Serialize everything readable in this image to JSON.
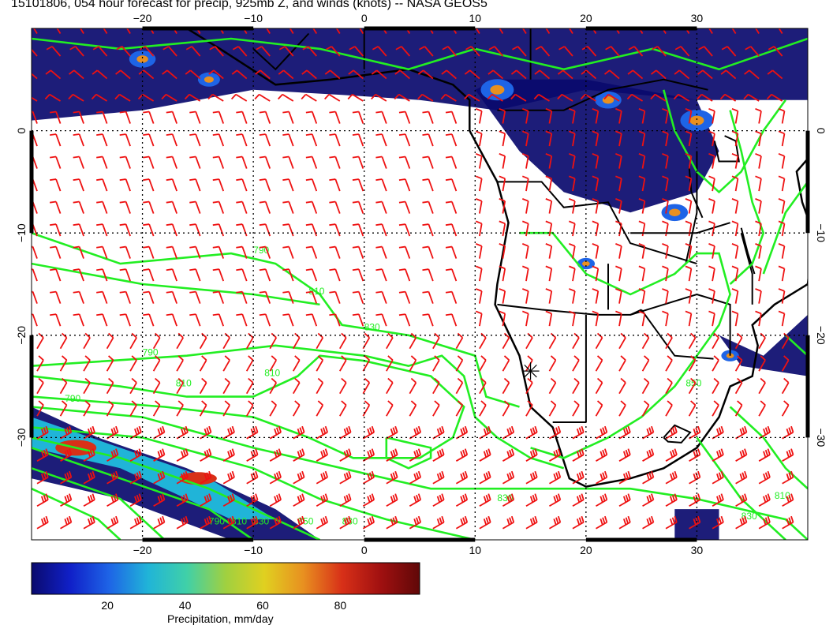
{
  "title": "15101806, 054 hour forecast for precip, 925mb Z, and winds (knots) -- NASA GEOS5",
  "map": {
    "lon_range": [
      -30,
      40
    ],
    "lat_range": [
      -40,
      10
    ],
    "lon_ticks": [
      -20,
      -10,
      0,
      10,
      20,
      30
    ],
    "lat_ticks": [
      0,
      -10,
      -20,
      -30
    ],
    "lon_tick_labels": [
      "−20",
      "−10",
      "0",
      "10",
      "20",
      "30"
    ],
    "lat_tick_labels": [
      "0",
      "−10",
      "−20",
      "−30"
    ],
    "gridlines": "dotted",
    "contour_labels": [
      "790",
      "790",
      "810",
      "810",
      "830",
      "830",
      "850",
      "830",
      "810",
      "790",
      "790",
      "810",
      "830",
      "850",
      "830",
      "810"
    ],
    "contour_color": "#22ee22",
    "wind_barb_color": "#ee1111",
    "coast_color": "#000000",
    "marker": {
      "symbol": "star",
      "lon": 15,
      "lat": -23.5
    }
  },
  "colorbar": {
    "ticks": [
      "20",
      "40",
      "60",
      "80"
    ],
    "tick_values": [
      20,
      40,
      60,
      80
    ],
    "range": [
      0,
      100
    ],
    "label": "Precipitation, mm/day",
    "colors": [
      "#0a0a6e",
      "#1020c8",
      "#1e64e6",
      "#20b4d8",
      "#40d0a8",
      "#a0d040",
      "#e0d020",
      "#e89020",
      "#d83018",
      "#a01010",
      "#600808"
    ]
  }
}
